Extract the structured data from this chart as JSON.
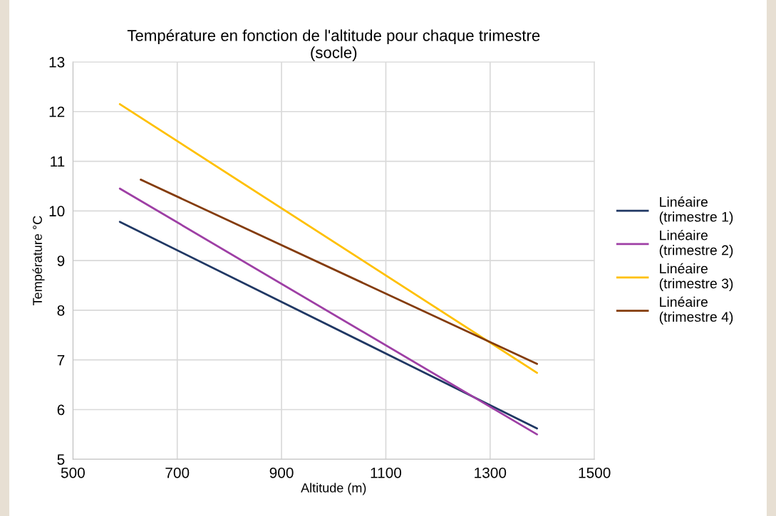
{
  "chart_data": {
    "type": "line",
    "title": "Température en fonction de l'altitude pour chaque trimestre\n(socle)",
    "xlabel": "Altitude (m)",
    "ylabel": "Température °C",
    "xlim": [
      500,
      1500
    ],
    "xticks": [
      500,
      700,
      900,
      1100,
      1300,
      1500
    ],
    "ylim": [
      5,
      13
    ],
    "yticks": [
      5,
      6,
      7,
      8,
      9,
      10,
      11,
      12,
      13
    ],
    "grid": true,
    "legend": "right",
    "marker": "none",
    "line_style": "solid",
    "series": [
      {
        "name": "Linéaire\n(trimestre 1)",
        "color": "#203864",
        "x": [
          590,
          1390
        ],
        "values": [
          9.78,
          5.62
        ]
      },
      {
        "name": "Linéaire\n(trimestre 2)",
        "color": "#9e3fa5",
        "x": [
          590,
          1390
        ],
        "values": [
          10.45,
          5.5
        ]
      },
      {
        "name": "Linéaire\n(trimestre 3)",
        "color": "#ffc000",
        "x": [
          590,
          1390
        ],
        "values": [
          12.15,
          6.74
        ]
      },
      {
        "name": "Linéaire\n(trimestre 4)",
        "color": "#843c0c",
        "x": [
          630,
          1390
        ],
        "values": [
          10.63,
          6.92
        ]
      }
    ]
  }
}
